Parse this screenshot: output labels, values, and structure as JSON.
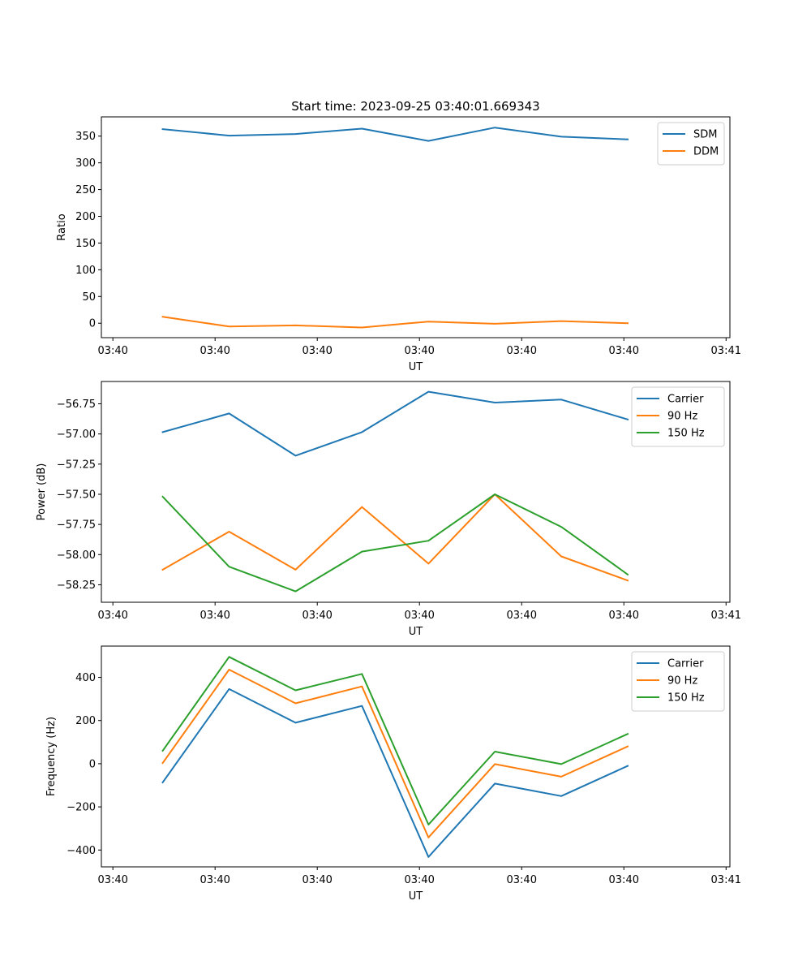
{
  "chart_data": [
    {
      "type": "line",
      "title": "Start time: 2023-09-25 03:40:01.669343",
      "xlabel": "UT",
      "ylabel": "Ratio",
      "x_ticks": [
        0,
        8,
        16,
        24,
        32,
        40,
        48
      ],
      "x_tick_labels": [
        "03:40",
        "03:40",
        "03:40",
        "03:40",
        "03:40",
        "03:40",
        "03:41"
      ],
      "xlim": [
        -0.9,
        48.3
      ],
      "x": [
        3.9,
        9.1,
        14.3,
        19.5,
        24.7,
        29.9,
        35.1,
        40.3
      ],
      "ylim": [
        -27,
        386
      ],
      "y_ticks": [
        0,
        50,
        100,
        150,
        200,
        250,
        300,
        350
      ],
      "y_tick_labels": [
        "0",
        "50",
        "100",
        "150",
        "200",
        "250",
        "300",
        "350"
      ],
      "legend_loc": "top-right",
      "grid": false,
      "series": [
        {
          "name": "SDM",
          "color": "#1f77b4",
          "values": [
            363,
            351,
            354,
            364,
            341,
            366,
            349,
            344
          ]
        },
        {
          "name": "DDM",
          "color": "#ff7f0e",
          "values": [
            12,
            -6,
            -4,
            -8,
            3,
            -1,
            4,
            0
          ]
        }
      ]
    },
    {
      "type": "line",
      "title": "",
      "xlabel": "UT",
      "ylabel": "Power (dB)",
      "x_ticks": [
        0,
        8,
        16,
        24,
        32,
        40,
        48
      ],
      "x_tick_labels": [
        "03:40",
        "03:40",
        "03:40",
        "03:40",
        "03:40",
        "03:40",
        "03:41"
      ],
      "xlim": [
        -0.9,
        48.3
      ],
      "x": [
        3.9,
        9.1,
        14.3,
        19.5,
        24.7,
        29.9,
        35.1,
        40.3
      ],
      "ylim": [
        -58.395,
        -56.565
      ],
      "y_ticks": [
        -58.25,
        -58.0,
        -57.75,
        -57.5,
        -57.25,
        -57.0,
        -56.75
      ],
      "y_tick_labels": [
        "−58.25",
        "−58.00",
        "−57.75",
        "−57.50",
        "−57.25",
        "−57.00",
        "−56.75"
      ],
      "legend_loc": "top-right",
      "grid": false,
      "series": [
        {
          "name": "Carrier",
          "color": "#1f77b4",
          "values": [
            -56.985,
            -56.83,
            -57.18,
            -56.985,
            -56.65,
            -56.74,
            -56.715,
            -56.88
          ]
        },
        {
          "name": "90 Hz",
          "color": "#ff7f0e",
          "values": [
            -58.125,
            -57.81,
            -58.125,
            -57.605,
            -58.075,
            -57.5,
            -58.015,
            -58.215
          ]
        },
        {
          "name": "150 Hz",
          "color": "#2ca02c",
          "values": [
            -57.52,
            -58.1,
            -58.305,
            -57.975,
            -57.885,
            -57.5,
            -57.77,
            -58.165
          ]
        }
      ]
    },
    {
      "type": "line",
      "title": "",
      "xlabel": "UT",
      "ylabel": "Frequency (Hz)",
      "x_ticks": [
        0,
        8,
        16,
        24,
        32,
        40,
        48
      ],
      "x_tick_labels": [
        "03:40",
        "03:40",
        "03:40",
        "03:40",
        "03:40",
        "03:40",
        "03:41"
      ],
      "xlim": [
        -0.9,
        48.3
      ],
      "x": [
        3.9,
        9.1,
        14.3,
        19.5,
        24.7,
        29.9,
        35.1,
        40.3
      ],
      "ylim": [
        -478,
        545
      ],
      "y_ticks": [
        -400,
        -200,
        0,
        200,
        400
      ],
      "y_tick_labels": [
        "−400",
        "−200",
        "0",
        "200",
        "400"
      ],
      "legend_loc": "top-right",
      "grid": false,
      "series": [
        {
          "name": "Carrier",
          "color": "#1f77b4",
          "values": [
            -87,
            346,
            190,
            268,
            -432,
            -92,
            -150,
            -10
          ]
        },
        {
          "name": "90 Hz",
          "color": "#ff7f0e",
          "values": [
            3,
            436,
            280,
            358,
            -342,
            -2,
            -60,
            80
          ]
        },
        {
          "name": "150 Hz",
          "color": "#2ca02c",
          "values": [
            60,
            495,
            340,
            416,
            -282,
            56,
            -2,
            138
          ]
        }
      ]
    }
  ]
}
